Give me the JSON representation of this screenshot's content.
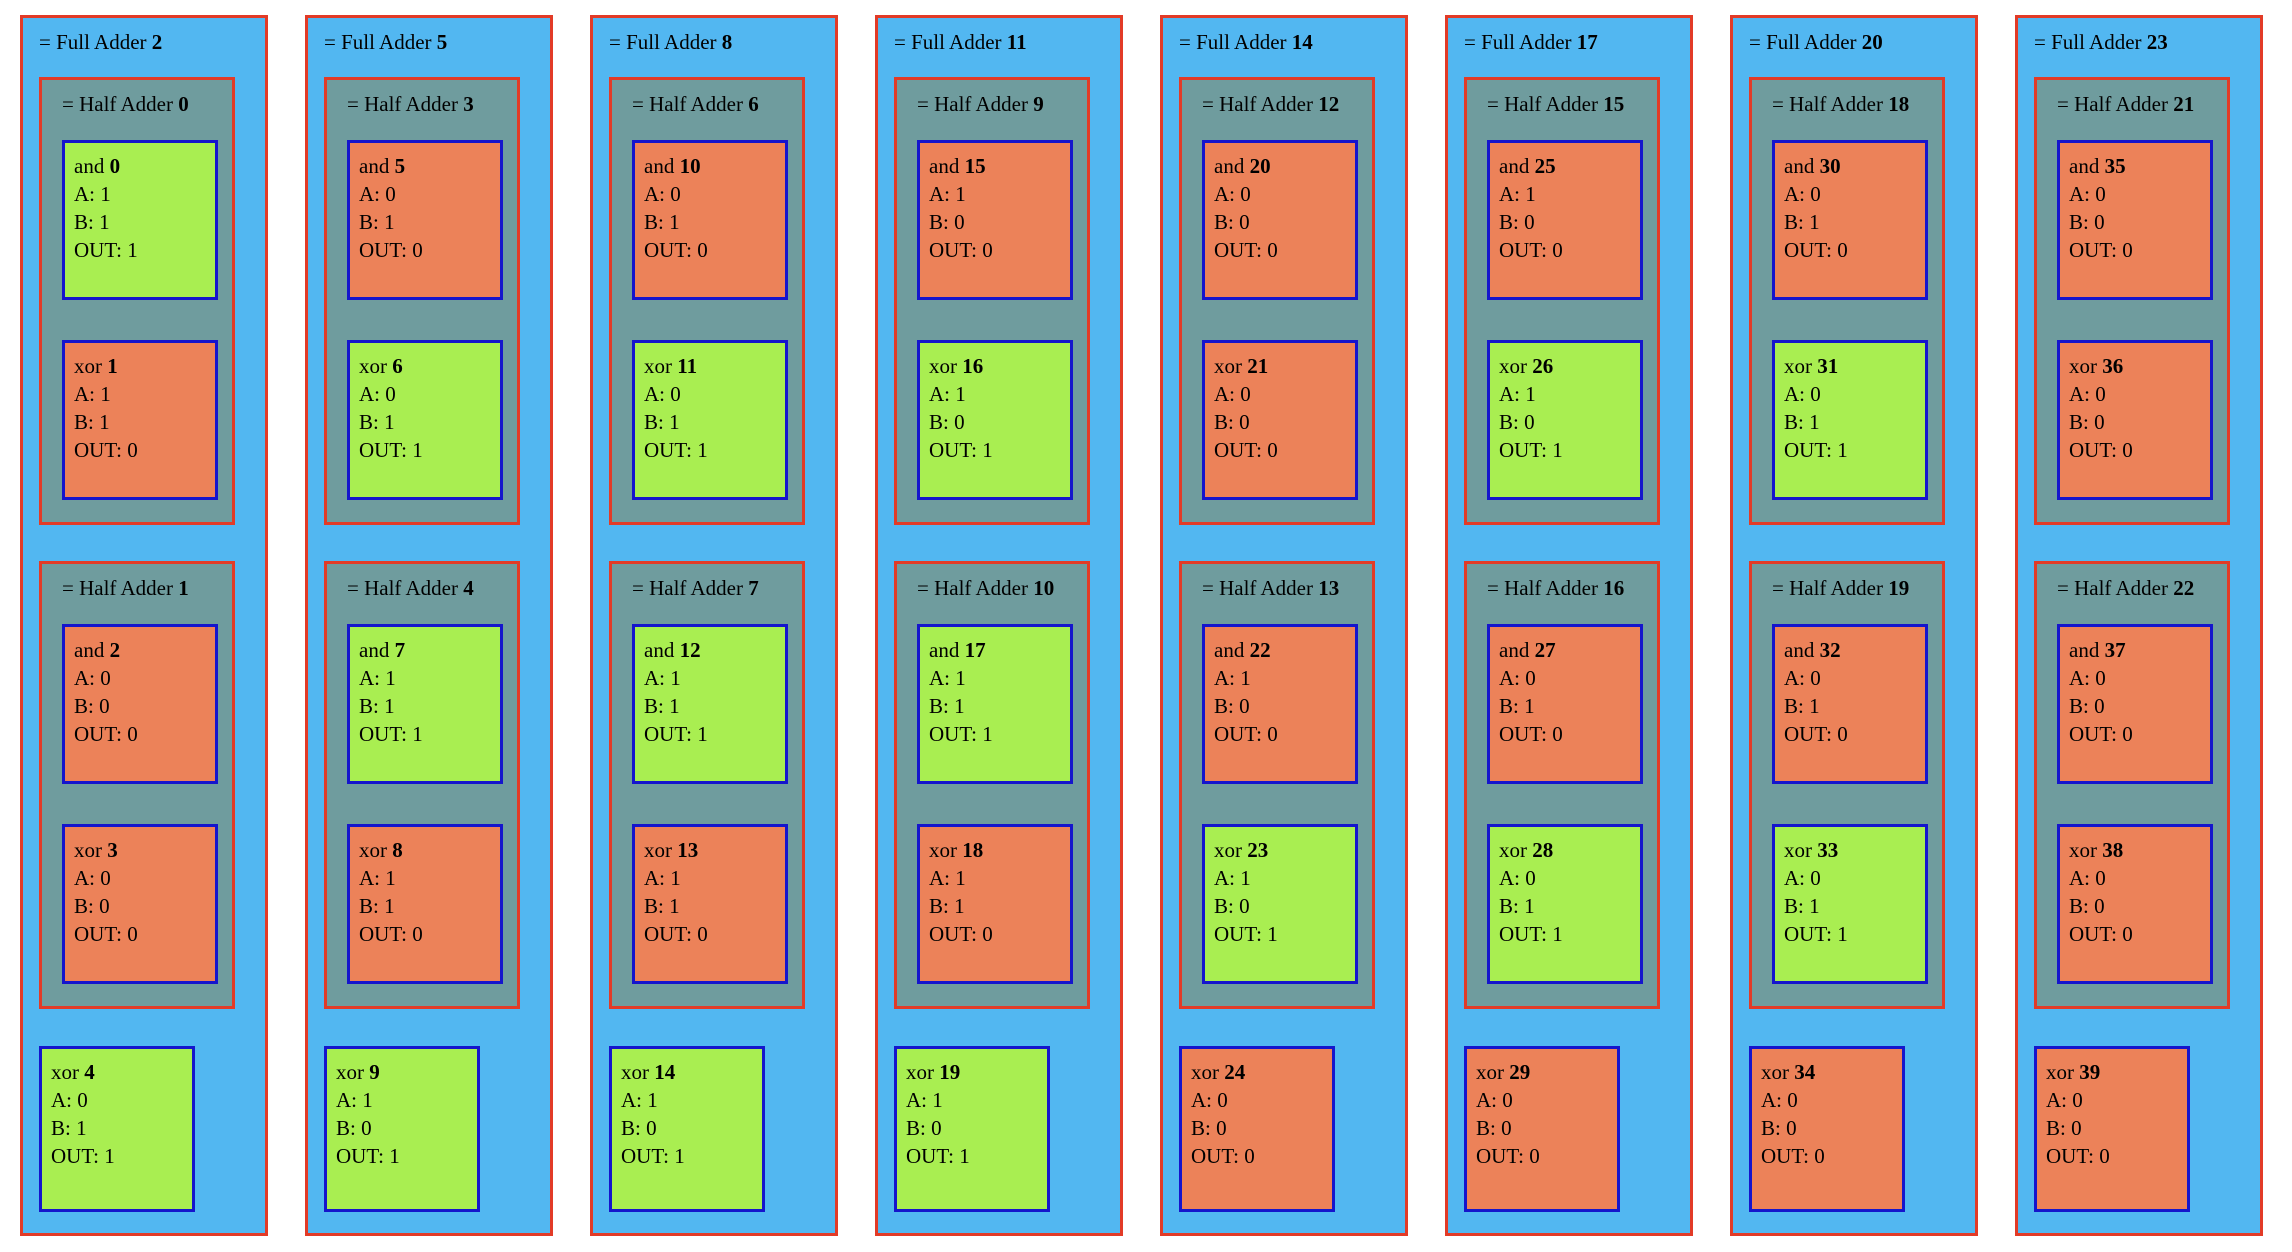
{
  "colors": {
    "full_adder_bg": "#52b7f1",
    "half_adder_bg": "#6f9c9e",
    "outer_border": "#e23b27",
    "gate_border": "#1515cc",
    "gate_on_bg": "#a9ee51",
    "gate_off_bg": "#ec8259",
    "page_bg": "#ffffff",
    "text": "#000000"
  },
  "labels": {
    "full_adder_prefix": "= Full Adder",
    "half_adder_prefix": "= Half Adder"
  },
  "legend": {
    "gate_on_meaning": "OUT: 1",
    "gate_off_meaning": "OUT: 0"
  },
  "full_adders": [
    {
      "id": "2",
      "half_adders": [
        {
          "id": "0",
          "gates": [
            {
              "type": "and",
              "id": "0",
              "state": "on",
              "lines": [
                "A: 1",
                "B: 1",
                "OUT: 1"
              ]
            },
            {
              "type": "xor",
              "id": "1",
              "state": "off",
              "lines": [
                "A: 1",
                "B: 1",
                "OUT: 0"
              ]
            }
          ]
        },
        {
          "id": "1",
          "gates": [
            {
              "type": "and",
              "id": "2",
              "state": "off",
              "lines": [
                "A: 0",
                "B: 0",
                "OUT: 0"
              ]
            },
            {
              "type": "xor",
              "id": "3",
              "state": "off",
              "lines": [
                "A: 0",
                "B: 0",
                "OUT: 0"
              ]
            }
          ]
        }
      ],
      "carry_gate": {
        "type": "xor",
        "id": "4",
        "state": "on",
        "lines": [
          "A: 0",
          "B: 1",
          "OUT: 1"
        ]
      }
    },
    {
      "id": "5",
      "half_adders": [
        {
          "id": "3",
          "gates": [
            {
              "type": "and",
              "id": "5",
              "state": "off",
              "lines": [
                "A: 0",
                "B: 1",
                "OUT: 0"
              ]
            },
            {
              "type": "xor",
              "id": "6",
              "state": "on",
              "lines": [
                "A: 0",
                "B: 1",
                "OUT: 1"
              ]
            }
          ]
        },
        {
          "id": "4",
          "gates": [
            {
              "type": "and",
              "id": "7",
              "state": "on",
              "lines": [
                "A: 1",
                "B: 1",
                "OUT: 1"
              ]
            },
            {
              "type": "xor",
              "id": "8",
              "state": "off",
              "lines": [
                "A: 1",
                "B: 1",
                "OUT: 0"
              ]
            }
          ]
        }
      ],
      "carry_gate": {
        "type": "xor",
        "id": "9",
        "state": "on",
        "lines": [
          "A: 1",
          "B: 0",
          "OUT: 1"
        ]
      }
    },
    {
      "id": "8",
      "half_adders": [
        {
          "id": "6",
          "gates": [
            {
              "type": "and",
              "id": "10",
              "state": "off",
              "lines": [
                "A: 0",
                "B: 1",
                "OUT: 0"
              ]
            },
            {
              "type": "xor",
              "id": "11",
              "state": "on",
              "lines": [
                "A: 0",
                "B: 1",
                "OUT: 1"
              ]
            }
          ]
        },
        {
          "id": "7",
          "gates": [
            {
              "type": "and",
              "id": "12",
              "state": "on",
              "lines": [
                "A: 1",
                "B: 1",
                "OUT: 1"
              ]
            },
            {
              "type": "xor",
              "id": "13",
              "state": "off",
              "lines": [
                "A: 1",
                "B: 1",
                "OUT: 0"
              ]
            }
          ]
        }
      ],
      "carry_gate": {
        "type": "xor",
        "id": "14",
        "state": "on",
        "lines": [
          "A: 1",
          "B: 0",
          "OUT: 1"
        ]
      }
    },
    {
      "id": "11",
      "half_adders": [
        {
          "id": "9",
          "gates": [
            {
              "type": "and",
              "id": "15",
              "state": "off",
              "lines": [
                "A: 1",
                "B: 0",
                "OUT: 0"
              ]
            },
            {
              "type": "xor",
              "id": "16",
              "state": "on",
              "lines": [
                "A: 1",
                "B: 0",
                "OUT: 1"
              ]
            }
          ]
        },
        {
          "id": "10",
          "gates": [
            {
              "type": "and",
              "id": "17",
              "state": "on",
              "lines": [
                "A: 1",
                "B: 1",
                "OUT: 1"
              ]
            },
            {
              "type": "xor",
              "id": "18",
              "state": "off",
              "lines": [
                "A: 1",
                "B: 1",
                "OUT: 0"
              ]
            }
          ]
        }
      ],
      "carry_gate": {
        "type": "xor",
        "id": "19",
        "state": "on",
        "lines": [
          "A: 1",
          "B: 0",
          "OUT: 1"
        ]
      }
    },
    {
      "id": "14",
      "half_adders": [
        {
          "id": "12",
          "gates": [
            {
              "type": "and",
              "id": "20",
              "state": "off",
              "lines": [
                "A: 0",
                "B: 0",
                "OUT: 0"
              ]
            },
            {
              "type": "xor",
              "id": "21",
              "state": "off",
              "lines": [
                "A: 0",
                "B: 0",
                "OUT: 0"
              ]
            }
          ]
        },
        {
          "id": "13",
          "gates": [
            {
              "type": "and",
              "id": "22",
              "state": "off",
              "lines": [
                "A: 1",
                "B: 0",
                "OUT: 0"
              ]
            },
            {
              "type": "xor",
              "id": "23",
              "state": "on",
              "lines": [
                "A: 1",
                "B: 0",
                "OUT: 1"
              ]
            }
          ]
        }
      ],
      "carry_gate": {
        "type": "xor",
        "id": "24",
        "state": "off",
        "lines": [
          "A: 0",
          "B: 0",
          "OUT: 0"
        ]
      }
    },
    {
      "id": "17",
      "half_adders": [
        {
          "id": "15",
          "gates": [
            {
              "type": "and",
              "id": "25",
              "state": "off",
              "lines": [
                "A: 1",
                "B: 0",
                "OUT: 0"
              ]
            },
            {
              "type": "xor",
              "id": "26",
              "state": "on",
              "lines": [
                "A: 1",
                "B: 0",
                "OUT: 1"
              ]
            }
          ]
        },
        {
          "id": "16",
          "gates": [
            {
              "type": "and",
              "id": "27",
              "state": "off",
              "lines": [
                "A: 0",
                "B: 1",
                "OUT: 0"
              ]
            },
            {
              "type": "xor",
              "id": "28",
              "state": "on",
              "lines": [
                "A: 0",
                "B: 1",
                "OUT: 1"
              ]
            }
          ]
        }
      ],
      "carry_gate": {
        "type": "xor",
        "id": "29",
        "state": "off",
        "lines": [
          "A: 0",
          "B: 0",
          "OUT: 0"
        ]
      }
    },
    {
      "id": "20",
      "half_adders": [
        {
          "id": "18",
          "gates": [
            {
              "type": "and",
              "id": "30",
              "state": "off",
              "lines": [
                "A: 0",
                "B: 1",
                "OUT: 0"
              ]
            },
            {
              "type": "xor",
              "id": "31",
              "state": "on",
              "lines": [
                "A: 0",
                "B: 1",
                "OUT: 1"
              ]
            }
          ]
        },
        {
          "id": "19",
          "gates": [
            {
              "type": "and",
              "id": "32",
              "state": "off",
              "lines": [
                "A: 0",
                "B: 1",
                "OUT: 0"
              ]
            },
            {
              "type": "xor",
              "id": "33",
              "state": "on",
              "lines": [
                "A: 0",
                "B: 1",
                "OUT: 1"
              ]
            }
          ]
        }
      ],
      "carry_gate": {
        "type": "xor",
        "id": "34",
        "state": "off",
        "lines": [
          "A: 0",
          "B: 0",
          "OUT: 0"
        ]
      }
    },
    {
      "id": "23",
      "half_adders": [
        {
          "id": "21",
          "gates": [
            {
              "type": "and",
              "id": "35",
              "state": "off",
              "lines": [
                "A: 0",
                "B: 0",
                "OUT: 0"
              ]
            },
            {
              "type": "xor",
              "id": "36",
              "state": "off",
              "lines": [
                "A: 0",
                "B: 0",
                "OUT: 0"
              ]
            }
          ]
        },
        {
          "id": "22",
          "gates": [
            {
              "type": "and",
              "id": "37",
              "state": "off",
              "lines": [
                "A: 0",
                "B: 0",
                "OUT: 0"
              ]
            },
            {
              "type": "xor",
              "id": "38",
              "state": "off",
              "lines": [
                "A: 0",
                "B: 0",
                "OUT: 0"
              ]
            }
          ]
        }
      ],
      "carry_gate": {
        "type": "xor",
        "id": "39",
        "state": "off",
        "lines": [
          "A: 0",
          "B: 0",
          "OUT: 0"
        ]
      }
    }
  ]
}
